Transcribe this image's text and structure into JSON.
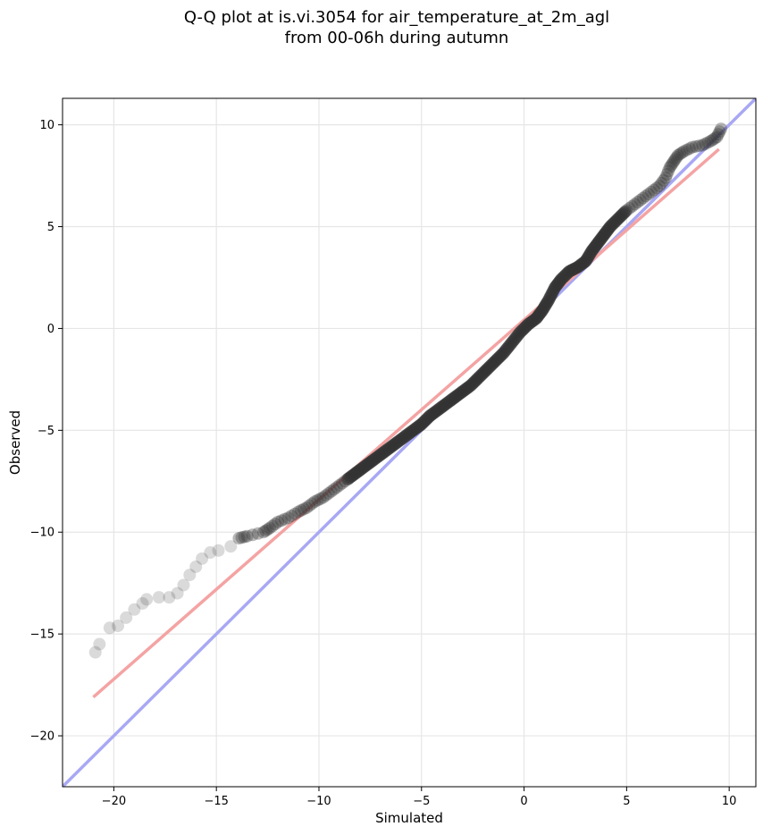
{
  "chart_data": {
    "type": "scatter",
    "title_line1": "Q-Q plot at is.vi.3054 for air_temperature_at_2m_agl",
    "title_line2": "from 00-06h during autumn",
    "xlabel": "Simulated",
    "ylabel": "Observed",
    "xlim": [
      -22.5,
      11.3
    ],
    "ylim": [
      -22.5,
      11.3
    ],
    "xticks": [
      -20,
      -15,
      -10,
      -5,
      0,
      5,
      10
    ],
    "yticks": [
      -20,
      -15,
      -10,
      -5,
      0,
      5,
      10
    ],
    "xtick_labels": [
      "−20",
      "−15",
      "−10",
      "−5",
      "0",
      "5",
      "10"
    ],
    "ytick_labels": [
      "−20",
      "−15",
      "−10",
      "−5",
      "0",
      "5",
      "10"
    ],
    "grid": true,
    "colors": {
      "points": "#333333",
      "fit_line": "#f4a3a3",
      "identity_line": "#a8a8f4",
      "core_points": "#1a1a80",
      "core_red": "#8b1a1a"
    },
    "fit_line": {
      "x": [
        -21.0,
        9.5
      ],
      "y": [
        -18.1,
        8.8
      ]
    },
    "identity_line": {
      "x": [
        -22.5,
        11.3
      ],
      "y": [
        -22.5,
        11.3
      ]
    },
    "points": [
      [
        -20.9,
        -15.9
      ],
      [
        -20.7,
        -15.5
      ],
      [
        -20.2,
        -14.7
      ],
      [
        -19.8,
        -14.6
      ],
      [
        -19.4,
        -14.2
      ],
      [
        -19.0,
        -13.8
      ],
      [
        -18.6,
        -13.5
      ],
      [
        -18.4,
        -13.3
      ],
      [
        -17.8,
        -13.2
      ],
      [
        -17.3,
        -13.2
      ],
      [
        -16.9,
        -13.0
      ],
      [
        -16.6,
        -12.6
      ],
      [
        -16.3,
        -12.1
      ],
      [
        -16.0,
        -11.7
      ],
      [
        -15.7,
        -11.3
      ],
      [
        -15.3,
        -11.0
      ],
      [
        -14.9,
        -10.9
      ],
      [
        -14.3,
        -10.7
      ],
      [
        -13.9,
        -10.3
      ],
      [
        -13.5,
        -10.2
      ],
      [
        -12.7,
        -10.0
      ],
      [
        -12.4,
        -9.8
      ],
      [
        -12.0,
        -9.5
      ],
      [
        -11.5,
        -9.3
      ],
      [
        -11.0,
        -9.0
      ],
      [
        -10.6,
        -8.8
      ],
      [
        -10.2,
        -8.5
      ],
      [
        -9.8,
        -8.3
      ],
      [
        -9.4,
        -8.0
      ],
      [
        -9.0,
        -7.7
      ],
      [
        -8.6,
        -7.4
      ],
      [
        -8.2,
        -7.1
      ],
      [
        -7.8,
        -6.8
      ],
      [
        -7.4,
        -6.5
      ],
      [
        -7.0,
        -6.2
      ],
      [
        -6.6,
        -5.9
      ],
      [
        -6.2,
        -5.6
      ],
      [
        -5.8,
        -5.3
      ],
      [
        -5.4,
        -5.0
      ],
      [
        -5.0,
        -4.7
      ],
      [
        -4.6,
        -4.3
      ],
      [
        -4.2,
        -4.0
      ],
      [
        -3.8,
        -3.7
      ],
      [
        -3.4,
        -3.4
      ],
      [
        -3.0,
        -3.1
      ],
      [
        -2.6,
        -2.8
      ],
      [
        -2.2,
        -2.4
      ],
      [
        -1.8,
        -2.0
      ],
      [
        -1.4,
        -1.6
      ],
      [
        -1.0,
        -1.2
      ],
      [
        -0.6,
        -0.7
      ],
      [
        -0.2,
        -0.2
      ],
      [
        0.2,
        0.2
      ],
      [
        0.6,
        0.5
      ],
      [
        0.9,
        0.9
      ],
      [
        1.2,
        1.4
      ],
      [
        1.5,
        2.0
      ],
      [
        1.8,
        2.4
      ],
      [
        2.2,
        2.8
      ],
      [
        2.6,
        3.0
      ],
      [
        3.0,
        3.3
      ],
      [
        3.3,
        3.8
      ],
      [
        3.6,
        4.2
      ],
      [
        3.9,
        4.6
      ],
      [
        4.2,
        5.0
      ],
      [
        4.6,
        5.4
      ],
      [
        5.0,
        5.8
      ],
      [
        5.4,
        6.1
      ],
      [
        5.8,
        6.4
      ],
      [
        6.2,
        6.7
      ],
      [
        6.6,
        7.0
      ],
      [
        6.9,
        7.4
      ],
      [
        7.1,
        7.9
      ],
      [
        7.3,
        8.2
      ],
      [
        7.5,
        8.5
      ],
      [
        7.8,
        8.7
      ],
      [
        8.2,
        8.9
      ],
      [
        8.7,
        9.0
      ],
      [
        9.1,
        9.2
      ],
      [
        9.4,
        9.4
      ],
      [
        9.6,
        9.8
      ]
    ]
  }
}
